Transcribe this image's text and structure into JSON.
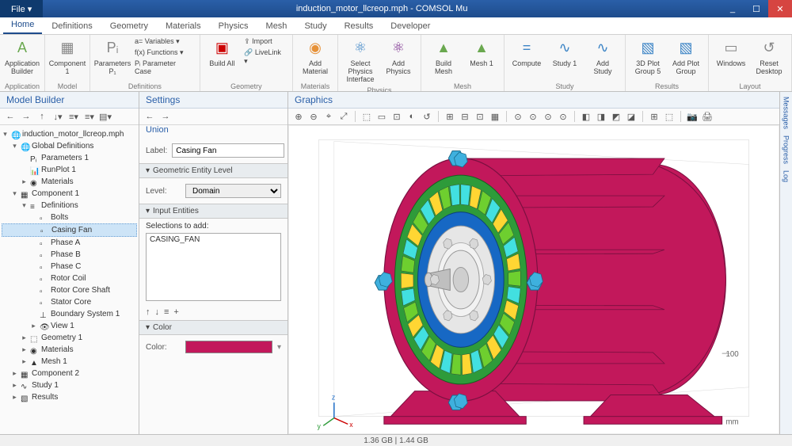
{
  "window": {
    "file_menu": "File ▾",
    "title": "induction_motor_llcreop.mph - COMSOL Mu",
    "min": "_",
    "max": "☐",
    "close": "✕"
  },
  "tabs": [
    "Home",
    "Definitions",
    "Geometry",
    "Materials",
    "Physics",
    "Mesh",
    "Study",
    "Results",
    "Developer"
  ],
  "active_tab": "Home",
  "ribbon": {
    "groups": [
      {
        "label": "Application",
        "items": [
          {
            "t": "lg",
            "label": "Application Builder",
            "ic": "A",
            "cls": "ic-a"
          }
        ]
      },
      {
        "label": "Model",
        "items": [
          {
            "t": "lg",
            "label": "Component 1",
            "ic": "▦",
            "cls": "ic-c"
          }
        ]
      },
      {
        "label": "Definitions",
        "items": [
          {
            "t": "lg",
            "label": "Parameters P₁",
            "ic": "Pᵢ",
            "cls": "ic-c"
          },
          {
            "t": "stack",
            "rows": [
              "a= Variables ▾",
              "f(x) Functions ▾",
              "Pᵢ Parameter Case"
            ]
          }
        ]
      },
      {
        "label": "Geometry",
        "items": [
          {
            "t": "lg",
            "label": "Build All",
            "ic": "▣",
            "cls": "ic-r"
          },
          {
            "t": "stack",
            "rows": [
              "⇪ Import",
              "🔗 LiveLink ▾"
            ]
          }
        ]
      },
      {
        "label": "Materials",
        "items": [
          {
            "t": "lg",
            "label": "Add Material",
            "ic": "◉",
            "cls": "ic-o"
          }
        ]
      },
      {
        "label": "Physics",
        "items": [
          {
            "t": "lg",
            "label": "Select Physics Interface",
            "ic": "⚛",
            "cls": "ic-b"
          },
          {
            "t": "lg",
            "label": "Add Physics",
            "ic": "⚛",
            "cls": "ic-p"
          }
        ]
      },
      {
        "label": "Mesh",
        "items": [
          {
            "t": "lg",
            "label": "Build Mesh",
            "ic": "▲",
            "cls": "ic-a"
          },
          {
            "t": "lg",
            "label": "Mesh 1",
            "ic": "▲",
            "cls": "ic-a"
          }
        ]
      },
      {
        "label": "Study",
        "items": [
          {
            "t": "lg",
            "label": "Compute",
            "ic": "=",
            "cls": "ic-b"
          },
          {
            "t": "lg",
            "label": "Study 1",
            "ic": "∿",
            "cls": "ic-b"
          },
          {
            "t": "lg",
            "label": "Add Study",
            "ic": "∿",
            "cls": "ic-b"
          }
        ]
      },
      {
        "label": "Results",
        "items": [
          {
            "t": "lg",
            "label": "3D Plot Group 5",
            "ic": "▧",
            "cls": "ic-b"
          },
          {
            "t": "lg",
            "label": "Add Plot Group",
            "ic": "▧",
            "cls": "ic-b"
          }
        ]
      },
      {
        "label": "Layout",
        "items": [
          {
            "t": "lg",
            "label": "Windows",
            "ic": "▭",
            "cls": "ic-c"
          },
          {
            "t": "lg",
            "label": "Reset Desktop",
            "ic": "↺",
            "cls": "ic-c"
          }
        ]
      }
    ]
  },
  "model_builder": {
    "title": "Model Builder",
    "toolbar_icons": [
      "←",
      "→",
      "↑",
      "↓▾",
      "≡▾",
      "≡▾",
      "▤▾"
    ],
    "tree": [
      {
        "d": 0,
        "exp": "▾",
        "ic": "🌐",
        "label": "induction_motor_llcreop.mph"
      },
      {
        "d": 1,
        "exp": "▾",
        "ic": "🌐",
        "label": "Global Definitions"
      },
      {
        "d": 2,
        "exp": "",
        "ic": "Pᵢ",
        "label": "Parameters 1"
      },
      {
        "d": 2,
        "exp": "",
        "ic": "📊",
        "label": "RunPlot 1"
      },
      {
        "d": 2,
        "exp": "▸",
        "ic": "◉",
        "label": "Materials"
      },
      {
        "d": 1,
        "exp": "▾",
        "ic": "▦",
        "label": "Component 1"
      },
      {
        "d": 2,
        "exp": "▾",
        "ic": "≡",
        "label": "Definitions"
      },
      {
        "d": 3,
        "exp": "",
        "ic": "▫",
        "label": "Bolts"
      },
      {
        "d": 3,
        "exp": "",
        "ic": "▫",
        "label": "Casing Fan",
        "sel": true
      },
      {
        "d": 3,
        "exp": "",
        "ic": "▫",
        "label": "Phase A"
      },
      {
        "d": 3,
        "exp": "",
        "ic": "▫",
        "label": "Phase B"
      },
      {
        "d": 3,
        "exp": "",
        "ic": "▫",
        "label": "Phase C"
      },
      {
        "d": 3,
        "exp": "",
        "ic": "▫",
        "label": "Rotor Coil"
      },
      {
        "d": 3,
        "exp": "",
        "ic": "▫",
        "label": "Rotor Core Shaft"
      },
      {
        "d": 3,
        "exp": "",
        "ic": "▫",
        "label": "Stator Core"
      },
      {
        "d": 3,
        "exp": "",
        "ic": "⊥",
        "label": "Boundary System 1"
      },
      {
        "d": 3,
        "exp": "▸",
        "ic": "👁",
        "label": "View 1"
      },
      {
        "d": 2,
        "exp": "▸",
        "ic": "⬚",
        "label": "Geometry 1"
      },
      {
        "d": 2,
        "exp": "▸",
        "ic": "◉",
        "label": "Materials"
      },
      {
        "d": 2,
        "exp": "▸",
        "ic": "▲",
        "label": "Mesh 1"
      },
      {
        "d": 1,
        "exp": "▸",
        "ic": "▦",
        "label": "Component 2"
      },
      {
        "d": 1,
        "exp": "▸",
        "ic": "∿",
        "label": "Study 1"
      },
      {
        "d": 1,
        "exp": "▸",
        "ic": "▧",
        "label": "Results"
      }
    ]
  },
  "settings": {
    "title": "Settings",
    "subtitle": "Union",
    "back": "←",
    "fwd": "→",
    "label_lbl": "Label:",
    "label_val": "Casing Fan",
    "sect_geom": "Geometric Entity Level",
    "level_lbl": "Level:",
    "level_val": "Domain",
    "sect_input": "Input Entities",
    "sel_add": "Selections to add:",
    "sel_item": "CASING_FAN",
    "mini_icons": [
      "↑",
      "↓",
      "≡",
      "+"
    ],
    "sect_color": "Color",
    "color_lbl": "Color:",
    "color_hex": "#c2185b"
  },
  "graphics": {
    "title": "Graphics",
    "toolbar_icons": [
      "⊕",
      "⊖",
      "⌖",
      "⤢",
      "|",
      "⬚",
      "▭",
      "⊡",
      "◐",
      "↺",
      "|",
      "⊞",
      "⊟",
      "⊡",
      "▦",
      "|",
      "⊙",
      "⊙",
      "⊙",
      "⊙",
      "|",
      "◧",
      "◨",
      "◩",
      "◪",
      "|",
      "⊞",
      "⬚",
      "|",
      "📷",
      "🖨"
    ],
    "axis_unit": "mm",
    "axis_tick": "100",
    "axes": {
      "x": "x",
      "y": "y",
      "z": "z"
    },
    "model_colors": {
      "casing": "#c2185b",
      "stator_ring": "#2e9b3a",
      "slots_a": "#42e0e0",
      "slots_b": "#ffd633",
      "slots_c": "#6ecf2f",
      "rotor": "#1768c4",
      "shaft_face": "#e6e6e6",
      "bolts": "#3eb0de"
    }
  },
  "side_tabs": [
    "Messages",
    "Progress",
    "Log"
  ],
  "status": "1.36 GB | 1.44 GB"
}
